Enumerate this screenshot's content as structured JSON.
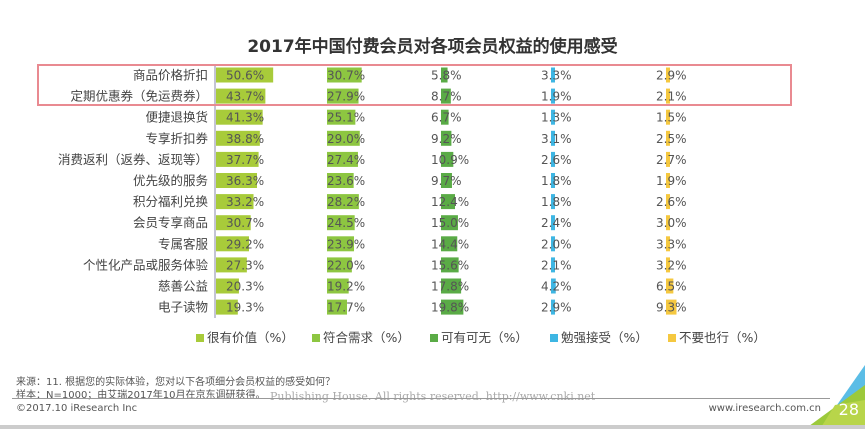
{
  "chart_data": {
    "type": "bar",
    "title": "2017年中国付费会员对各项会员权益的使用感受",
    "categories": [
      "商品价格折扣",
      "定期优惠券（免运费券）",
      "便捷退换货",
      "专享折扣券",
      "消费返利（返券、返现等）",
      "优先级的服务",
      "积分福利兑换",
      "会员专享商品",
      "专属客服",
      "个性化产品或服务体验",
      "慈善公益",
      "电子读物"
    ],
    "series": [
      {
        "name": "很有价值（%）",
        "color": "#a8cb3a",
        "values": [
          50.6,
          43.7,
          41.3,
          38.8,
          37.7,
          36.3,
          33.2,
          30.7,
          29.2,
          27.3,
          20.3,
          19.3
        ]
      },
      {
        "name": "符合需求（%）",
        "color": "#8dc641",
        "values": [
          30.7,
          27.9,
          25.1,
          29.0,
          27.4,
          23.6,
          28.2,
          24.5,
          23.9,
          22.0,
          19.2,
          17.7
        ]
      },
      {
        "name": "可有可无（%）",
        "color": "#5aab46",
        "values": [
          5.8,
          8.7,
          6.7,
          9.2,
          10.9,
          9.7,
          12.4,
          15.0,
          14.4,
          15.6,
          17.8,
          19.8
        ]
      },
      {
        "name": "勉强接受（%）",
        "color": "#3eb6e3",
        "values": [
          3.3,
          1.9,
          1.3,
          3.1,
          2.6,
          1.8,
          1.8,
          2.4,
          2.0,
          2.1,
          4.2,
          2.9
        ]
      },
      {
        "name": "不要也行（%）",
        "color": "#f5c840",
        "values": [
          2.9,
          2.1,
          1.5,
          2.5,
          2.7,
          1.9,
          2.6,
          3.0,
          3.3,
          3.2,
          6.5,
          9.3
        ]
      }
    ],
    "highlighted": [
      "商品价格折扣",
      "定期优惠券（免运费券）"
    ],
    "legend_position": "bottom"
  },
  "footer": {
    "source": "来源：11. 根据您的实际体验，您对以下各项细分会员权益的感受如何？",
    "sample": "样本：N=1000；由艾瑞2017年10月在京东调研获得。",
    "watermark": "Publishing House. All rights reserved.    http://www.cnki.net",
    "copyright": "©2017.10 iResearch Inc",
    "website": "www.iresearch.com.cn",
    "page": "28"
  }
}
